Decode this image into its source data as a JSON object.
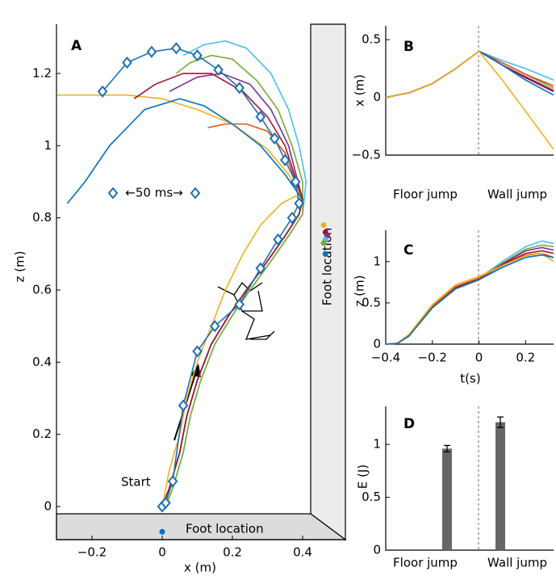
{
  "chart_data": [
    {
      "type": "line",
      "label": "A",
      "xlabel": "x (m)",
      "ylabel": "z (m)",
      "xlim": [
        -0.3,
        0.52
      ],
      "ylim": [
        -0.1,
        1.34
      ],
      "xticks": [
        {
          "value": -0.2,
          "label": "−0.2"
        },
        0,
        0.2,
        0.4
      ],
      "yticks": [
        0,
        0.2,
        0.4,
        0.6,
        0.8,
        1,
        1.2
      ],
      "annotations": [
        "Start",
        "Foot location",
        "Foot location",
        "←50 ms→"
      ],
      "series": [
        {
          "color": "#D95319",
          "x": [
            0.0,
            0.02,
            0.05,
            0.07,
            0.1,
            0.14,
            0.19,
            0.24,
            0.3,
            0.35,
            0.39,
            0.4,
            0.35,
            0.3,
            0.24,
            0.18,
            0.13
          ],
          "values": [
            0.0,
            0.05,
            0.15,
            0.25,
            0.35,
            0.45,
            0.53,
            0.6,
            0.68,
            0.75,
            0.81,
            0.85,
            0.98,
            1.04,
            1.06,
            1.06,
            1.05
          ]
        },
        {
          "color": "#EDB120",
          "x": [
            0.0,
            0.02,
            0.05,
            0.07,
            0.1,
            0.14,
            0.18,
            0.23,
            0.28,
            0.34,
            0.38,
            0.4,
            0.36,
            0.3,
            0.2,
            0.1,
            0.0,
            -0.1,
            -0.3
          ],
          "values": [
            0.0,
            0.1,
            0.2,
            0.3,
            0.4,
            0.5,
            0.6,
            0.7,
            0.78,
            0.84,
            0.86,
            0.85,
            0.92,
            0.99,
            1.06,
            1.1,
            1.13,
            1.14,
            1.14
          ]
        },
        {
          "color": "#0072BD",
          "x": [
            0.0,
            0.02,
            0.05,
            0.07,
            0.1,
            0.14,
            0.19,
            0.24,
            0.3,
            0.35,
            0.39,
            0.4,
            0.35,
            0.28,
            0.2,
            0.12,
            0.05,
            -0.05,
            -0.15,
            -0.22,
            -0.27
          ],
          "values": [
            0.0,
            0.05,
            0.15,
            0.25,
            0.35,
            0.45,
            0.53,
            0.6,
            0.68,
            0.75,
            0.81,
            0.85,
            0.92,
            1.0,
            1.06,
            1.11,
            1.13,
            1.1,
            1.0,
            0.9,
            0.84
          ]
        },
        {
          "color": "#4DBEEE",
          "x": [
            0.01,
            0.03,
            0.06,
            0.08,
            0.11,
            0.15,
            0.2,
            0.25,
            0.31,
            0.36,
            0.4,
            0.41,
            0.39,
            0.36,
            0.31,
            0.24,
            0.18,
            0.12,
            0.06
          ],
          "values": [
            0.0,
            0.05,
            0.15,
            0.25,
            0.35,
            0.45,
            0.53,
            0.6,
            0.68,
            0.75,
            0.81,
            0.9,
            1.0,
            1.1,
            1.2,
            1.27,
            1.29,
            1.28,
            1.25
          ]
        },
        {
          "color": "#77AC30",
          "x": [
            0.01,
            0.03,
            0.06,
            0.08,
            0.11,
            0.15,
            0.2,
            0.25,
            0.31,
            0.36,
            0.4,
            0.4,
            0.37,
            0.33,
            0.27,
            0.2,
            0.14,
            0.08,
            0.04
          ],
          "values": [
            0.0,
            0.05,
            0.15,
            0.25,
            0.35,
            0.45,
            0.53,
            0.6,
            0.68,
            0.75,
            0.81,
            0.9,
            1.0,
            1.1,
            1.18,
            1.24,
            1.25,
            1.23,
            1.2
          ]
        },
        {
          "color": "#7E2F8E",
          "x": [
            0.0,
            0.02,
            0.05,
            0.07,
            0.1,
            0.14,
            0.19,
            0.24,
            0.3,
            0.35,
            0.39,
            0.4,
            0.36,
            0.31,
            0.25,
            0.17,
            0.1,
            0.02
          ],
          "values": [
            0.0,
            0.05,
            0.15,
            0.25,
            0.35,
            0.45,
            0.53,
            0.6,
            0.68,
            0.75,
            0.81,
            0.85,
            1.0,
            1.1,
            1.17,
            1.2,
            1.19,
            1.15
          ]
        },
        {
          "color": "#A2142F",
          "x": [
            0.0,
            0.02,
            0.05,
            0.07,
            0.1,
            0.14,
            0.19,
            0.24,
            0.3,
            0.35,
            0.39,
            0.4,
            0.35,
            0.3,
            0.23,
            0.14,
            0.06,
            -0.02,
            -0.08
          ],
          "values": [
            0.0,
            0.05,
            0.15,
            0.25,
            0.35,
            0.45,
            0.53,
            0.6,
            0.68,
            0.75,
            0.81,
            0.85,
            1.0,
            1.08,
            1.15,
            1.2,
            1.2,
            1.17,
            1.13
          ]
        },
        {
          "color": "#1f6fb0",
          "marker": "diamond",
          "x": [
            0.0,
            0.01,
            0.03,
            0.06,
            0.1,
            0.15,
            0.22,
            0.28,
            0.33,
            0.37,
            0.39,
            0.38,
            0.35,
            0.32,
            0.28,
            0.22,
            0.16,
            0.1,
            0.04,
            -0.03,
            -0.1,
            -0.17
          ],
          "values": [
            0.0,
            0.01,
            0.07,
            0.28,
            0.43,
            0.5,
            0.56,
            0.66,
            0.74,
            0.8,
            0.84,
            0.9,
            0.96,
            1.02,
            1.08,
            1.16,
            1.21,
            1.25,
            1.27,
            1.26,
            1.23,
            1.15
          ]
        }
      ],
      "foot_points": {
        "x": [
          0.46,
          0.465,
          0.47,
          0.465,
          0.46,
          0.465,
          0.0
        ],
        "values": [
          0.78,
          0.76,
          0.75,
          0.74,
          0.73,
          0.7,
          -0.07
        ],
        "colors": [
          "#EDB120",
          "#A2142F",
          "#7E2F8E",
          "#4DBEEE",
          "#77AC30",
          "#0072BD",
          "#0072BD"
        ]
      }
    },
    {
      "type": "line",
      "label": "B",
      "ylabel": "x (m)",
      "xlim": [
        -0.4,
        0.32
      ],
      "ylim": [
        -0.5,
        0.62
      ],
      "yticks": [
        {
          "value": 0.5,
          "label": "0.5"
        },
        0,
        {
          "value": -0.5,
          "label": "−0.5"
        }
      ],
      "annotations": [
        "Floor jump",
        "Wall jump"
      ],
      "series": [
        {
          "color": "#4DBEEE",
          "x": [
            -0.4,
            -0.35,
            -0.3,
            -0.2,
            -0.1,
            0,
            0.1,
            0.2,
            0.32
          ],
          "values": [
            0.0,
            0.02,
            0.04,
            0.12,
            0.25,
            0.4,
            0.32,
            0.25,
            0.15
          ]
        },
        {
          "color": "#77AC30",
          "x": [
            -0.4,
            -0.35,
            -0.3,
            -0.2,
            -0.1,
            0,
            0.1,
            0.2,
            0.32
          ],
          "values": [
            0.0,
            0.02,
            0.04,
            0.12,
            0.25,
            0.4,
            0.3,
            0.2,
            0.08
          ]
        },
        {
          "color": "#D95319",
          "x": [
            -0.4,
            -0.35,
            -0.3,
            -0.2,
            -0.1,
            0,
            0.1,
            0.2,
            0.32
          ],
          "values": [
            0.0,
            0.02,
            0.04,
            0.12,
            0.25,
            0.4,
            0.3,
            0.2,
            0.1
          ]
        },
        {
          "color": "#7E2F8E",
          "x": [
            -0.4,
            -0.35,
            -0.3,
            -0.2,
            -0.1,
            0,
            0.1,
            0.2,
            0.32
          ],
          "values": [
            0.0,
            0.02,
            0.04,
            0.12,
            0.25,
            0.4,
            0.28,
            0.18,
            0.06
          ]
        },
        {
          "color": "#A2142F",
          "x": [
            -0.4,
            -0.35,
            -0.3,
            -0.2,
            -0.1,
            0,
            0.1,
            0.2,
            0.32
          ],
          "values": [
            0.0,
            0.02,
            0.04,
            0.12,
            0.25,
            0.4,
            0.28,
            0.17,
            0.05
          ]
        },
        {
          "color": "#0072BD",
          "x": [
            -0.4,
            -0.35,
            -0.3,
            -0.2,
            -0.1,
            0,
            0.1,
            0.2,
            0.32
          ],
          "values": [
            0.0,
            0.02,
            0.04,
            0.12,
            0.25,
            0.4,
            0.28,
            0.15,
            0.02
          ]
        },
        {
          "color": "#EDB120",
          "x": [
            -0.4,
            -0.35,
            -0.3,
            -0.2,
            -0.1,
            0,
            0.1,
            0.2,
            0.32
          ],
          "values": [
            0.0,
            0.02,
            0.04,
            0.12,
            0.25,
            0.4,
            0.15,
            -0.12,
            -0.45
          ]
        }
      ]
    },
    {
      "type": "line",
      "label": "C",
      "ylabel": "z (m)",
      "xlabel": "t(s)",
      "xlim": [
        -0.4,
        0.32
      ],
      "ylim": [
        0,
        1.38
      ],
      "xticks": [
        {
          "value": -0.4,
          "label": "−0.4"
        },
        {
          "value": -0.2,
          "label": "−0.2"
        },
        0,
        0.2
      ],
      "yticks": [
        0,
        0.5,
        1
      ],
      "series": [
        {
          "color": "#4DBEEE",
          "x": [
            -0.4,
            -0.35,
            -0.3,
            -0.2,
            -0.1,
            0,
            0.1,
            0.2,
            0.27,
            0.32
          ],
          "values": [
            0.0,
            0.01,
            0.1,
            0.45,
            0.68,
            0.8,
            1.0,
            1.18,
            1.25,
            1.22
          ]
        },
        {
          "color": "#77AC30",
          "x": [
            -0.4,
            -0.35,
            -0.3,
            -0.2,
            -0.1,
            0,
            0.1,
            0.2,
            0.27,
            0.32
          ],
          "values": [
            0.0,
            0.01,
            0.1,
            0.45,
            0.68,
            0.8,
            0.98,
            1.15,
            1.2,
            1.18
          ]
        },
        {
          "color": "#7E2F8E",
          "x": [
            -0.4,
            -0.35,
            -0.3,
            -0.2,
            -0.1,
            0,
            0.1,
            0.2,
            0.27,
            0.32
          ],
          "values": [
            0.0,
            0.01,
            0.1,
            0.45,
            0.68,
            0.79,
            0.97,
            1.13,
            1.17,
            1.14
          ]
        },
        {
          "color": "#A2142F",
          "x": [
            -0.4,
            -0.35,
            -0.3,
            -0.2,
            -0.1,
            0,
            0.1,
            0.2,
            0.27,
            0.32
          ],
          "values": [
            0.0,
            0.01,
            0.1,
            0.45,
            0.68,
            0.79,
            0.96,
            1.1,
            1.13,
            1.1
          ]
        },
        {
          "color": "#D95319",
          "x": [
            -0.4,
            -0.35,
            -0.3,
            -0.2,
            -0.1,
            0,
            0.1,
            0.2,
            0.27,
            0.32
          ],
          "values": [
            0.0,
            0.01,
            0.11,
            0.46,
            0.7,
            0.8,
            0.95,
            1.08,
            1.1,
            1.05
          ]
        },
        {
          "color": "#EDB120",
          "x": [
            -0.4,
            -0.35,
            -0.3,
            -0.2,
            -0.1,
            0,
            0.1,
            0.2,
            0.27,
            0.32
          ],
          "values": [
            0.0,
            0.01,
            0.12,
            0.48,
            0.72,
            0.82,
            0.95,
            1.07,
            1.1,
            1.0
          ]
        },
        {
          "color": "#0072BD",
          "x": [
            -0.4,
            -0.35,
            -0.3,
            -0.2,
            -0.1,
            0,
            0.1,
            0.2,
            0.27,
            0.32
          ],
          "values": [
            0.0,
            0.01,
            0.1,
            0.44,
            0.67,
            0.78,
            0.93,
            1.05,
            1.08,
            1.05
          ]
        }
      ]
    },
    {
      "type": "bar",
      "label": "D",
      "ylabel": "E (J)",
      "ylim": [
        0,
        1.36
      ],
      "yticks": [
        0,
        0.5,
        1
      ],
      "categories": [
        "Floor jump",
        "Wall jump"
      ],
      "values": [
        0.96,
        1.21
      ],
      "errors": [
        0.03,
        0.05
      ],
      "color": "#666666"
    }
  ]
}
